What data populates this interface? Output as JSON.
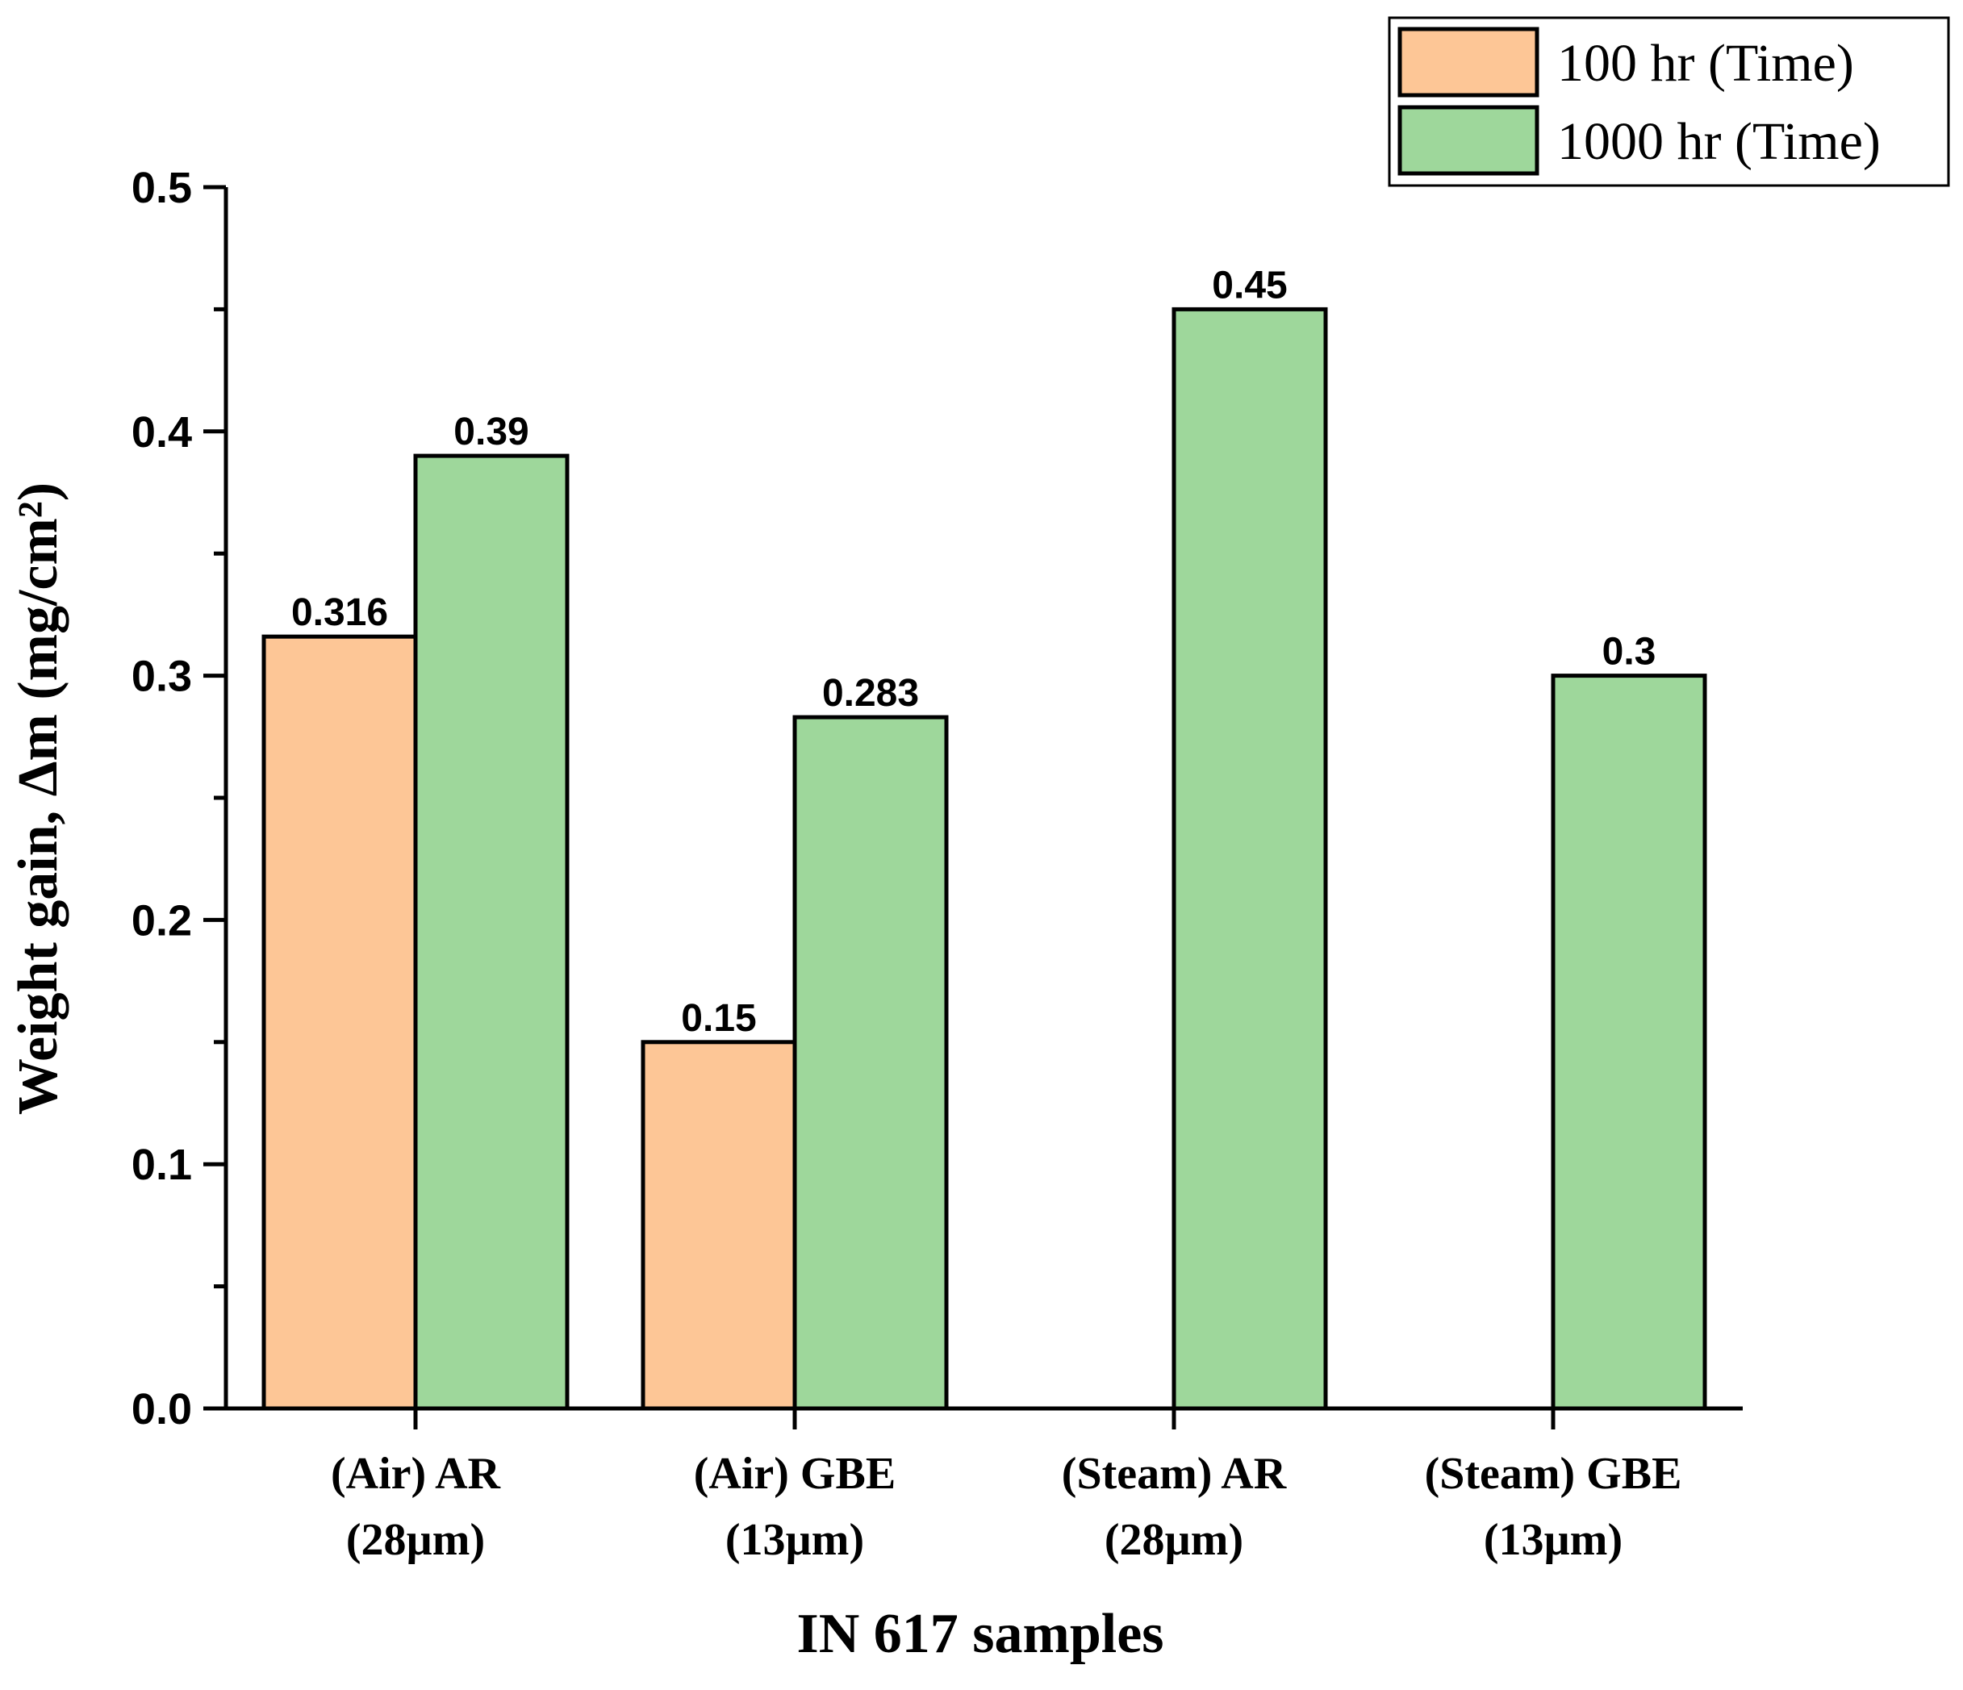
{
  "chart_data": {
    "type": "bar",
    "title": "",
    "xlabel": "IN 617 samples",
    "ylabel": "Weight gain, Δm (mg/cm²)",
    "ylim": [
      0,
      0.5
    ],
    "yticks": [
      "0.0",
      "0.1",
      "0.2",
      "0.3",
      "0.4",
      "0.5"
    ],
    "categories": [
      [
        "(Air) AR",
        "(28µm)"
      ],
      [
        "(Air) GBE",
        "(13µm)"
      ],
      [
        "(Steam) AR",
        "(28µm)"
      ],
      [
        "(Steam) GBE",
        "(13µm)"
      ]
    ],
    "series": [
      {
        "name": "100 hr (Time)",
        "color": "#FDC696",
        "values": [
          0.316,
          0.15,
          null,
          null
        ],
        "labels": [
          "0.316",
          "0.15",
          "",
          ""
        ]
      },
      {
        "name": "1000 hr (Time)",
        "color": "#9ED79B",
        "values": [
          0.39,
          0.283,
          0.45,
          0.3
        ],
        "labels": [
          "0.39",
          "0.283",
          "0.45",
          "0.3"
        ]
      }
    ],
    "legend": "top-right",
    "grid": false
  }
}
